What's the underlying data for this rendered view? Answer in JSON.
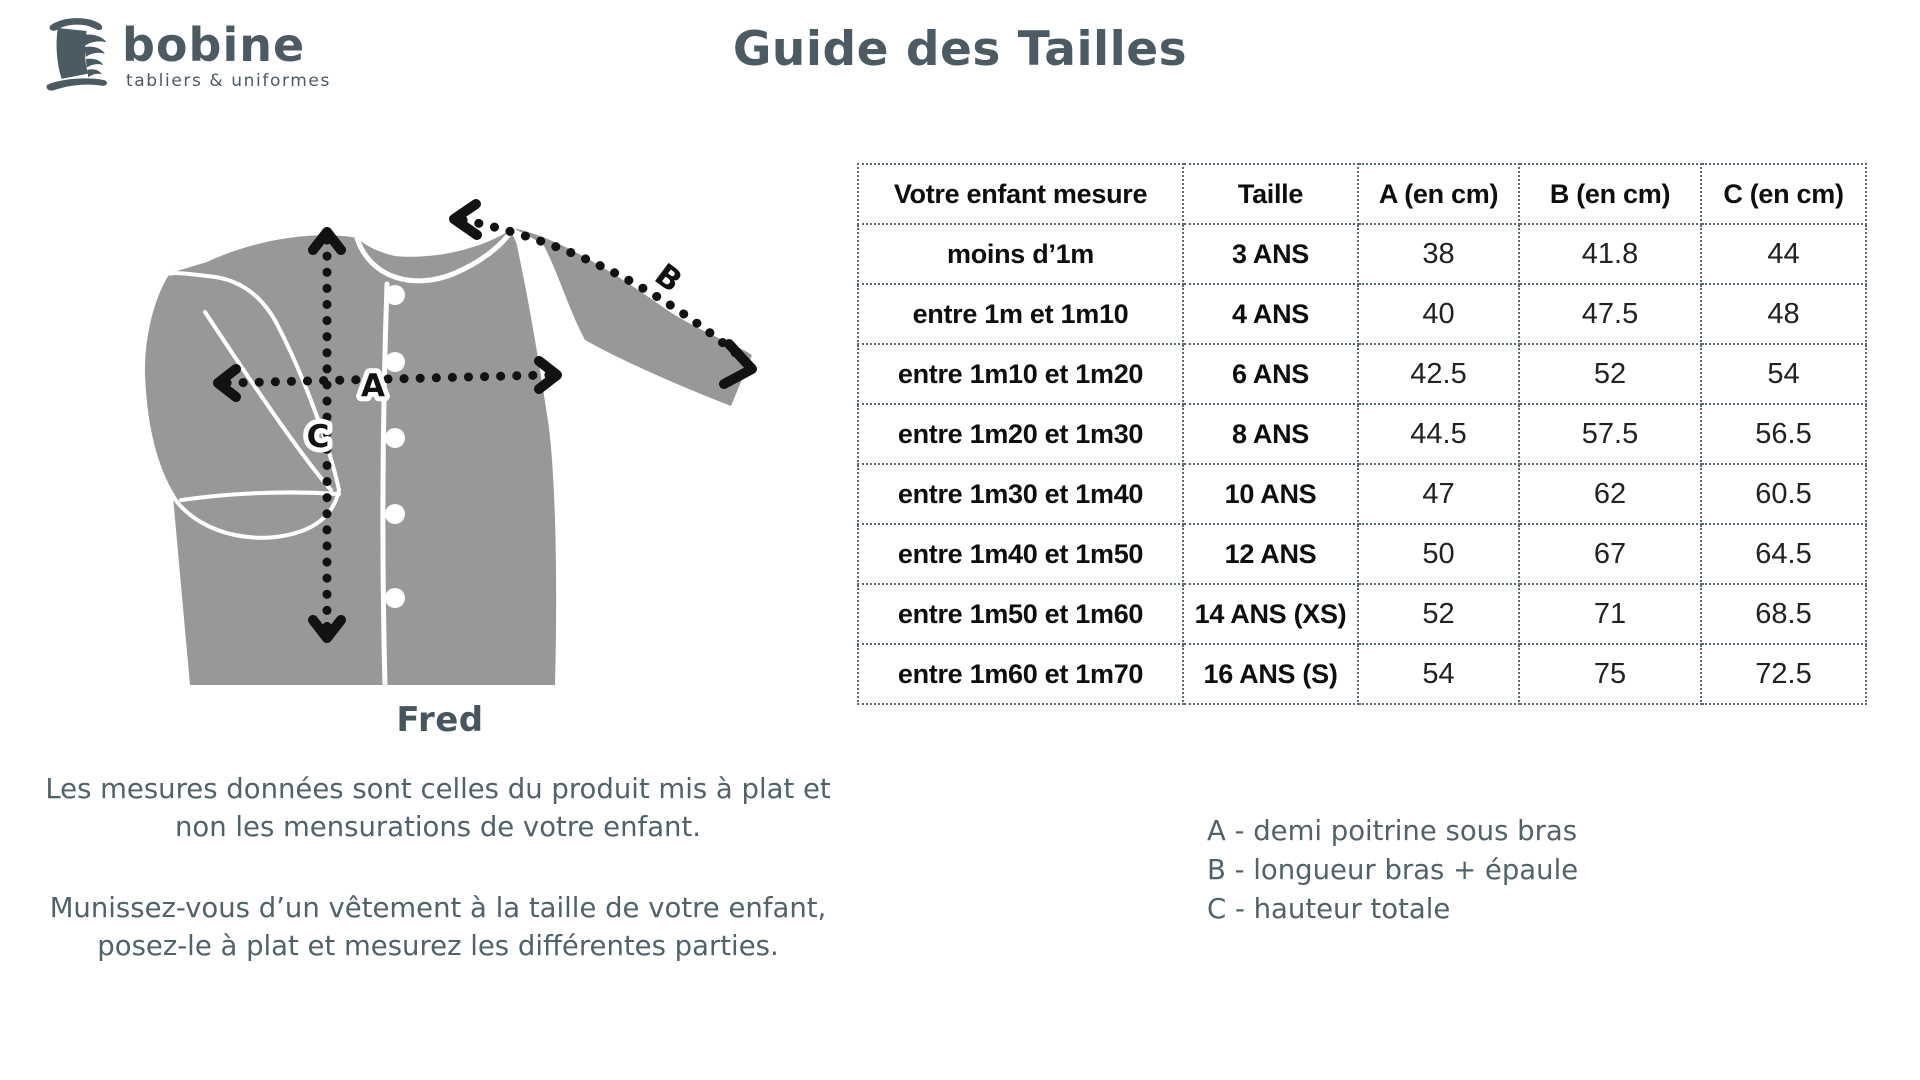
{
  "brand": {
    "name": "bobine",
    "tagline": "tabliers & uniformes"
  },
  "header": {
    "title": "Guide des Tailles"
  },
  "product": {
    "name": "Fred"
  },
  "diagram": {
    "arrow_labels": {
      "a": "A",
      "b": "B",
      "c": "C"
    }
  },
  "size_table": {
    "headers": [
      "Votre enfant mesure",
      "Taille",
      "A (en cm)",
      "B (en cm)",
      "C (en cm)"
    ],
    "rows": [
      [
        "moins d’1m",
        "3 ANS",
        "38",
        "41.8",
        "44"
      ],
      [
        "entre 1m et 1m10",
        "4 ANS",
        "40",
        "47.5",
        "48"
      ],
      [
        "entre 1m10 et 1m20",
        "6 ANS",
        "42.5",
        "52",
        "54"
      ],
      [
        "entre 1m20 et 1m30",
        "8 ANS",
        "44.5",
        "57.5",
        "56.5"
      ],
      [
        "entre 1m30 et 1m40",
        "10 ANS",
        "47",
        "62",
        "60.5"
      ],
      [
        "entre 1m40 et 1m50",
        "12 ANS",
        "50",
        "67",
        "64.5"
      ],
      [
        "entre 1m50 et 1m60",
        "14 ANS (XS)",
        "52",
        "71",
        "68.5"
      ],
      [
        "entre 1m60 et 1m70",
        "16 ANS (S)",
        "54",
        "75",
        "72.5"
      ]
    ]
  },
  "notes": [
    {
      "lines": [
        "Les mesures données sont celles du produit mis à plat et",
        "non les mensurations de votre enfant."
      ]
    },
    {
      "lines": [
        "Munissez-vous d’un vêtement à la taille de votre enfant,",
        "posez-le à plat et mesurez les différentes parties."
      ]
    }
  ],
  "legend": {
    "items": [
      {
        "text": "A - demi poitrine sous bras"
      },
      {
        "text": "B - longueur bras + épaule"
      },
      {
        "text": "C - hauteur totale"
      }
    ]
  },
  "colors": {
    "brand_slate": "#4b5a63",
    "body_text": "#51626b",
    "garment_gray": "#989896",
    "table_border": "#5a6a74",
    "arrow_black": "#121212"
  }
}
